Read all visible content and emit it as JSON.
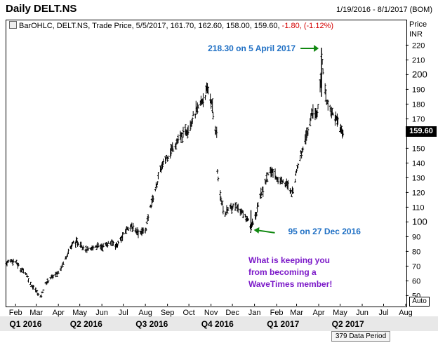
{
  "header": {
    "title": "Daily DELT.NS",
    "range": "1/19/2016 - 8/1/2017 (BOM)"
  },
  "legend": {
    "prefix": "BarOHLC, DELT.NS, Trade Price, 5/5/2017, 161.70, 162.60, 158.00, 159.60,",
    "change": "-1.80, (-1.12%)"
  },
  "axis": {
    "price_label": "Price",
    "currency_label": "INR",
    "last_price": "159.60",
    "auto_label": "Auto",
    "data_period": "379 Data Period"
  },
  "chart_data": {
    "type": "bar",
    "subtype": "ohlc",
    "ylim": [
      44,
      224
    ],
    "y_ticks": [
      50,
      60,
      70,
      80,
      90,
      100,
      110,
      120,
      130,
      140,
      150,
      160,
      170,
      180,
      190,
      200,
      210,
      220
    ],
    "y_tick_labels": [
      "50",
      "60",
      "70",
      "80",
      "90",
      "100",
      "110",
      "120",
      "130",
      "140",
      "150",
      "160",
      "170",
      "180",
      "190",
      "200",
      "210",
      "220"
    ],
    "x_range": [
      "2016-01-19",
      "2017-08-01"
    ],
    "month_ticks": [
      {
        "label": "Feb",
        "date": "2016-02-01"
      },
      {
        "label": "Mar",
        "date": "2016-03-01"
      },
      {
        "label": "Apr",
        "date": "2016-04-01"
      },
      {
        "label": "May",
        "date": "2016-05-01"
      },
      {
        "label": "Jun",
        "date": "2016-06-01"
      },
      {
        "label": "Jul",
        "date": "2016-07-01"
      },
      {
        "label": "Aug",
        "date": "2016-08-01"
      },
      {
        "label": "Sep",
        "date": "2016-09-01"
      },
      {
        "label": "Oct",
        "date": "2016-10-01"
      },
      {
        "label": "Nov",
        "date": "2016-11-01"
      },
      {
        "label": "Dec",
        "date": "2016-12-01"
      },
      {
        "label": "Jan",
        "date": "2017-01-01"
      },
      {
        "label": "Feb",
        "date": "2017-02-01"
      },
      {
        "label": "Mar",
        "date": "2017-03-01"
      },
      {
        "label": "Apr",
        "date": "2017-04-01"
      },
      {
        "label": "May",
        "date": "2017-05-01"
      },
      {
        "label": "Jun",
        "date": "2017-06-01"
      },
      {
        "label": "Jul",
        "date": "2017-07-01"
      },
      {
        "label": "Aug",
        "date": "2017-08-01"
      }
    ],
    "quarters": [
      {
        "label": "Q1 2016",
        "date": "2016-02-15"
      },
      {
        "label": "Q2 2016",
        "date": "2016-05-10"
      },
      {
        "label": "Q3 2016",
        "date": "2016-08-10"
      },
      {
        "label": "Q4 2016",
        "date": "2016-11-10"
      },
      {
        "label": "Q1 2017",
        "date": "2017-02-10"
      },
      {
        "label": "Q2 2017",
        "date": "2017-05-12"
      }
    ],
    "price_path": [
      [
        "2016-01-19",
        72
      ],
      [
        "2016-01-25",
        74
      ],
      [
        "2016-02-01",
        73
      ],
      [
        "2016-02-08",
        68
      ],
      [
        "2016-02-15",
        66
      ],
      [
        "2016-02-22",
        58
      ],
      [
        "2016-03-01",
        53
      ],
      [
        "2016-03-07",
        49
      ],
      [
        "2016-03-14",
        58
      ],
      [
        "2016-03-21",
        62
      ],
      [
        "2016-03-31",
        65
      ],
      [
        "2016-04-08",
        72
      ],
      [
        "2016-04-15",
        80
      ],
      [
        "2016-04-22",
        86
      ],
      [
        "2016-05-01",
        86
      ],
      [
        "2016-05-08",
        82
      ],
      [
        "2016-05-15",
        80
      ],
      [
        "2016-05-22",
        84
      ],
      [
        "2016-06-01",
        83
      ],
      [
        "2016-06-08",
        85
      ],
      [
        "2016-06-15",
        86
      ],
      [
        "2016-06-22",
        84
      ],
      [
        "2016-07-01",
        91
      ],
      [
        "2016-07-08",
        97
      ],
      [
        "2016-07-15",
        96
      ],
      [
        "2016-07-22",
        93
      ],
      [
        "2016-08-01",
        94
      ],
      [
        "2016-08-08",
        110
      ],
      [
        "2016-08-15",
        122
      ],
      [
        "2016-08-22",
        135
      ],
      [
        "2016-09-01",
        145
      ],
      [
        "2016-09-08",
        150
      ],
      [
        "2016-09-15",
        155
      ],
      [
        "2016-09-22",
        158
      ],
      [
        "2016-10-01",
        165
      ],
      [
        "2016-10-08",
        172
      ],
      [
        "2016-10-15",
        178
      ],
      [
        "2016-10-22",
        185
      ],
      [
        "2016-10-28",
        190
      ],
      [
        "2016-11-02",
        180
      ],
      [
        "2016-11-06",
        165
      ],
      [
        "2016-11-09",
        162
      ],
      [
        "2016-11-10",
        135
      ],
      [
        "2016-11-14",
        118
      ],
      [
        "2016-11-20",
        105
      ],
      [
        "2016-11-28",
        110
      ],
      [
        "2016-12-05",
        112
      ],
      [
        "2016-12-12",
        108
      ],
      [
        "2016-12-20",
        103
      ],
      [
        "2016-12-27",
        97
      ],
      [
        "2017-01-03",
        105
      ],
      [
        "2017-01-10",
        118
      ],
      [
        "2017-01-17",
        128
      ],
      [
        "2017-01-24",
        135
      ],
      [
        "2017-02-01",
        130
      ],
      [
        "2017-02-08",
        128
      ],
      [
        "2017-02-15",
        126
      ],
      [
        "2017-02-22",
        118
      ],
      [
        "2017-03-01",
        135
      ],
      [
        "2017-03-08",
        148
      ],
      [
        "2017-03-15",
        160
      ],
      [
        "2017-03-22",
        172
      ],
      [
        "2017-03-30",
        175
      ],
      [
        "2017-04-04",
        195
      ],
      [
        "2017-04-05",
        216
      ],
      [
        "2017-04-07",
        200
      ],
      [
        "2017-04-12",
        182
      ],
      [
        "2017-04-18",
        176
      ],
      [
        "2017-04-24",
        170
      ],
      [
        "2017-05-01",
        164
      ],
      [
        "2017-05-05",
        160
      ]
    ],
    "last_bar": {
      "date": "5/5/2017",
      "open": 161.7,
      "high": 162.6,
      "low": 158.0,
      "close": 159.6
    },
    "annotations": [
      {
        "text": "218.30 on 5 April 2017",
        "date": "2017-04-05",
        "price": 218.3,
        "color": "#1e6fc4"
      },
      {
        "text": "95 on 27 Dec 2016",
        "date": "2016-12-27",
        "price": 95,
        "color": "#1e6fc4"
      }
    ],
    "promo_lines": [
      "What is keeping you",
      "from becoming a",
      "WaveTimes member!"
    ],
    "promo_color": "#7b18c8",
    "arrow_color": "#118811"
  }
}
